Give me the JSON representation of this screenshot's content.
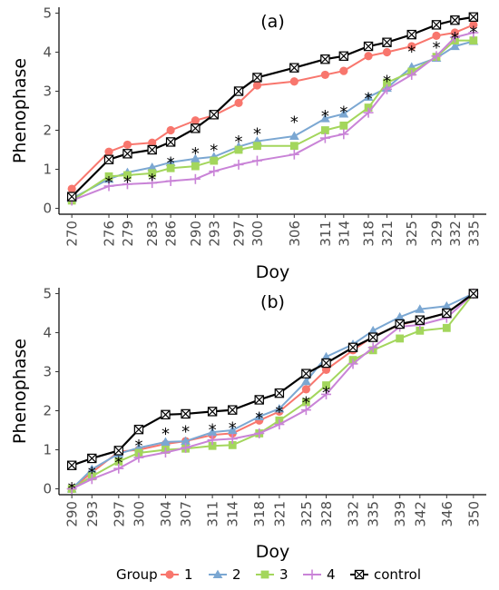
{
  "chart_data": [
    {
      "type": "line",
      "panel_label": "(a)",
      "xlabel": "Doy",
      "ylabel": "Phenophase",
      "x": [
        270,
        276,
        279,
        283,
        286,
        290,
        293,
        297,
        300,
        306,
        311,
        314,
        318,
        321,
        325,
        329,
        332,
        335
      ],
      "ylim": [
        0,
        5
      ],
      "yticks": [
        0,
        1,
        2,
        3,
        4,
        5
      ],
      "series": [
        {
          "name": "1",
          "values": [
            0.5,
            1.45,
            1.63,
            1.68,
            2.0,
            2.25,
            2.38,
            2.7,
            3.15,
            3.25,
            3.42,
            3.52,
            3.9,
            4.0,
            4.15,
            4.42,
            4.5,
            4.7
          ]
        },
        {
          "name": "2",
          "values": [
            0.25,
            0.75,
            0.92,
            1.05,
            1.18,
            1.27,
            1.32,
            1.58,
            1.72,
            1.85,
            2.3,
            2.42,
            2.85,
            3.08,
            3.62,
            3.85,
            4.15,
            4.28
          ]
        },
        {
          "name": "3",
          "values": [
            0.2,
            0.82,
            0.85,
            0.9,
            1.03,
            1.08,
            1.22,
            1.5,
            1.6,
            1.6,
            2.0,
            2.12,
            2.58,
            3.22,
            3.5,
            3.88,
            4.3,
            4.3
          ]
        },
        {
          "name": "4",
          "values": [
            0.2,
            0.57,
            0.62,
            0.65,
            0.7,
            0.75,
            0.95,
            1.12,
            1.22,
            1.38,
            1.8,
            1.9,
            2.45,
            3.05,
            3.42,
            3.9,
            4.38,
            4.5
          ]
        },
        {
          "name": "control",
          "values": [
            0.3,
            1.25,
            1.4,
            1.5,
            1.7,
            2.05,
            2.4,
            3.0,
            3.35,
            3.6,
            3.82,
            3.9,
            4.15,
            4.25,
            4.45,
            4.7,
            4.82,
            4.9
          ]
        }
      ],
      "significance": {
        "symbol": "*",
        "x": [
          276,
          279,
          283,
          286,
          290,
          293,
          297,
          300,
          306,
          311,
          314,
          318,
          321,
          325,
          329,
          332,
          335
        ],
        "y": [
          0.8,
          0.82,
          0.87,
          1.3,
          1.55,
          1.63,
          1.85,
          2.05,
          2.35,
          2.5,
          2.6,
          2.95,
          3.4,
          4.15,
          4.25,
          4.5,
          4.65
        ]
      }
    },
    {
      "type": "line",
      "panel_label": "(b)",
      "xlabel": "Doy",
      "ylabel": "Phenophase",
      "x": [
        290,
        293,
        297,
        300,
        304,
        307,
        311,
        314,
        318,
        321,
        325,
        328,
        332,
        335,
        339,
        342,
        346,
        350
      ],
      "ylim": [
        0,
        5
      ],
      "yticks": [
        0,
        1,
        2,
        3,
        4,
        5
      ],
      "series": [
        {
          "name": "1",
          "values": [
            0.0,
            0.42,
            0.95,
            1.0,
            1.15,
            1.22,
            1.38,
            1.42,
            1.75,
            1.98,
            2.55,
            3.05,
            3.55,
            3.9,
            4.2,
            4.32,
            4.5,
            5.0
          ]
        },
        {
          "name": "2",
          "values": [
            0.0,
            0.5,
            0.9,
            1.05,
            1.2,
            1.22,
            1.45,
            1.5,
            1.85,
            2.05,
            2.75,
            3.38,
            3.7,
            4.05,
            4.4,
            4.6,
            4.68,
            5.0
          ]
        },
        {
          "name": "3",
          "values": [
            0.0,
            0.32,
            0.7,
            0.92,
            1.0,
            1.03,
            1.1,
            1.12,
            1.42,
            1.75,
            2.22,
            2.65,
            3.3,
            3.55,
            3.85,
            4.05,
            4.12,
            5.0
          ]
        },
        {
          "name": "4",
          "values": [
            0.0,
            0.25,
            0.52,
            0.8,
            0.93,
            1.05,
            1.25,
            1.28,
            1.42,
            1.65,
            2.02,
            2.42,
            3.2,
            3.62,
            4.15,
            4.2,
            4.38,
            5.0
          ]
        },
        {
          "name": "control",
          "values": [
            0.6,
            0.78,
            0.98,
            1.52,
            1.9,
            1.92,
            1.98,
            2.02,
            2.28,
            2.45,
            2.95,
            3.22,
            3.62,
            3.88,
            4.22,
            4.32,
            4.5,
            5.0
          ]
        }
      ],
      "significance": {
        "symbol": "*",
        "x": [
          290,
          293,
          297,
          300,
          304,
          307,
          311,
          314,
          318,
          321,
          325,
          328
        ],
        "y": [
          0.15,
          0.55,
          0.82,
          1.25,
          1.55,
          1.6,
          1.65,
          1.7,
          1.95,
          2.1,
          2.35,
          2.6
        ]
      }
    }
  ],
  "legend": {
    "title": "Group",
    "placement": "bottom",
    "items": [
      {
        "label": "1",
        "color": "#f8766d",
        "shape": "circle"
      },
      {
        "label": "2",
        "color": "#7ba7d2",
        "shape": "triangle"
      },
      {
        "label": "3",
        "color": "#a3d65c",
        "shape": "square"
      },
      {
        "label": "4",
        "color": "#c983d7",
        "shape": "plus"
      },
      {
        "label": "control",
        "color": "#000000",
        "shape": "square-x"
      }
    ]
  }
}
